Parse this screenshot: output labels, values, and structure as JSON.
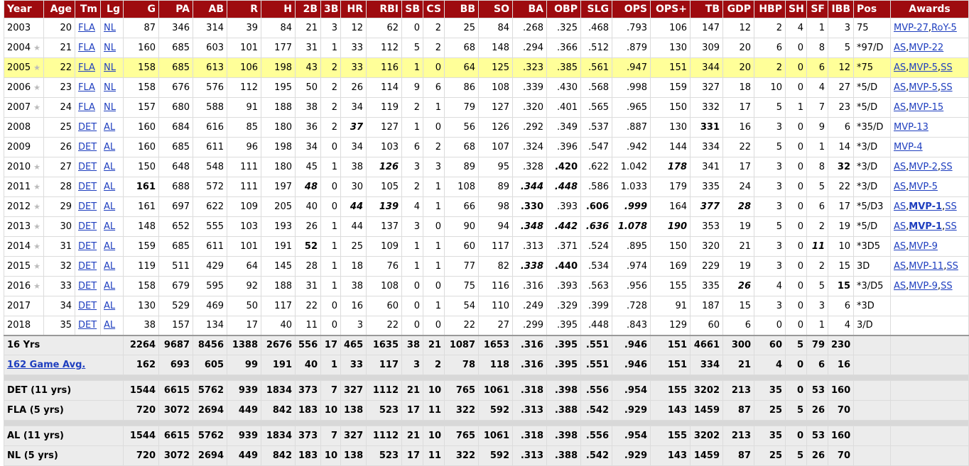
{
  "headers": [
    {
      "label": "Year",
      "align": "left"
    },
    {
      "label": "Age"
    },
    {
      "label": "Tm"
    },
    {
      "label": "Lg"
    },
    {
      "label": "G"
    },
    {
      "label": "PA"
    },
    {
      "label": "AB"
    },
    {
      "label": "R"
    },
    {
      "label": "H"
    },
    {
      "label": "2B"
    },
    {
      "label": "3B"
    },
    {
      "label": "HR"
    },
    {
      "label": "RBI"
    },
    {
      "label": "SB"
    },
    {
      "label": "CS"
    },
    {
      "label": "BB"
    },
    {
      "label": "SO"
    },
    {
      "label": "BA"
    },
    {
      "label": "OBP"
    },
    {
      "label": "SLG"
    },
    {
      "label": "OPS"
    },
    {
      "label": "OPS+"
    },
    {
      "label": "TB"
    },
    {
      "label": "GDP"
    },
    {
      "label": "HBP"
    },
    {
      "label": "SH"
    },
    {
      "label": "SF"
    },
    {
      "label": "IBB"
    },
    {
      "label": "Pos",
      "align": "left"
    },
    {
      "label": "Awards",
      "align": "center"
    }
  ],
  "seasons": [
    {
      "year": "2003",
      "star": false,
      "age": "20",
      "tm": "FLA",
      "lg": "NL",
      "g": "87",
      "pa": "346",
      "ab": "314",
      "r": "39",
      "h": "84",
      "b2": "21",
      "b3": "3",
      "hr": "12",
      "rbi": "62",
      "sb": "0",
      "cs": "2",
      "bb": "25",
      "so": "84",
      "ba": ".268",
      "obp": ".325",
      "slg": ".468",
      "ops": ".793",
      "opsp": "106",
      "tb": "147",
      "gdp": "12",
      "hbp": "2",
      "sh": "4",
      "sf": "1",
      "ibb": "3",
      "pos": "75",
      "awards": [
        {
          "t": "MVP-27",
          "link": true
        },
        {
          "t": ","
        },
        {
          "t": "RoY-5",
          "link": true
        }
      ],
      "fmt": {}
    },
    {
      "year": "2004",
      "star": true,
      "age": "21",
      "tm": "FLA",
      "lg": "NL",
      "g": "160",
      "pa": "685",
      "ab": "603",
      "r": "101",
      "h": "177",
      "b2": "31",
      "b3": "1",
      "hr": "33",
      "rbi": "112",
      "sb": "5",
      "cs": "2",
      "bb": "68",
      "so": "148",
      "ba": ".294",
      "obp": ".366",
      "slg": ".512",
      "ops": ".879",
      "opsp": "130",
      "tb": "309",
      "gdp": "20",
      "hbp": "6",
      "sh": "0",
      "sf": "8",
      "ibb": "5",
      "pos": "*97/D",
      "awards": [
        {
          "t": "AS",
          "link": true
        },
        {
          "t": ","
        },
        {
          "t": "MVP-22",
          "link": true
        }
      ],
      "fmt": {}
    },
    {
      "year": "2005",
      "star": true,
      "hl": true,
      "age": "22",
      "tm": "FLA",
      "lg": "NL",
      "g": "158",
      "pa": "685",
      "ab": "613",
      "r": "106",
      "h": "198",
      "b2": "43",
      "b3": "2",
      "hr": "33",
      "rbi": "116",
      "sb": "1",
      "cs": "0",
      "bb": "64",
      "so": "125",
      "ba": ".323",
      "obp": ".385",
      "slg": ".561",
      "ops": ".947",
      "opsp": "151",
      "tb": "344",
      "gdp": "20",
      "hbp": "2",
      "sh": "0",
      "sf": "6",
      "ibb": "12",
      "pos": "*75",
      "awards": [
        {
          "t": "AS",
          "link": true
        },
        {
          "t": ","
        },
        {
          "t": "MVP-5",
          "link": true
        },
        {
          "t": ","
        },
        {
          "t": "SS",
          "link": true
        }
      ],
      "fmt": {}
    },
    {
      "year": "2006",
      "star": true,
      "age": "23",
      "tm": "FLA",
      "lg": "NL",
      "g": "158",
      "pa": "676",
      "ab": "576",
      "r": "112",
      "h": "195",
      "b2": "50",
      "b3": "2",
      "hr": "26",
      "rbi": "114",
      "sb": "9",
      "cs": "6",
      "bb": "86",
      "so": "108",
      "ba": ".339",
      "obp": ".430",
      "slg": ".568",
      "ops": ".998",
      "opsp": "159",
      "tb": "327",
      "gdp": "18",
      "hbp": "10",
      "sh": "0",
      "sf": "4",
      "ibb": "27",
      "pos": "*5/D",
      "awards": [
        {
          "t": "AS",
          "link": true
        },
        {
          "t": ","
        },
        {
          "t": "MVP-5",
          "link": true
        },
        {
          "t": ","
        },
        {
          "t": "SS",
          "link": true
        }
      ],
      "fmt": {}
    },
    {
      "year": "2007",
      "star": true,
      "age": "24",
      "tm": "FLA",
      "lg": "NL",
      "g": "157",
      "pa": "680",
      "ab": "588",
      "r": "91",
      "h": "188",
      "b2": "38",
      "b3": "2",
      "hr": "34",
      "rbi": "119",
      "sb": "2",
      "cs": "1",
      "bb": "79",
      "so": "127",
      "ba": ".320",
      "obp": ".401",
      "slg": ".565",
      "ops": ".965",
      "opsp": "150",
      "tb": "332",
      "gdp": "17",
      "hbp": "5",
      "sh": "1",
      "sf": "7",
      "ibb": "23",
      "pos": "*5/D",
      "awards": [
        {
          "t": "AS",
          "link": true
        },
        {
          "t": ","
        },
        {
          "t": "MVP-15",
          "link": true
        }
      ],
      "fmt": {}
    },
    {
      "year": "2008",
      "star": false,
      "age": "25",
      "tm": "DET",
      "lg": "AL",
      "g": "160",
      "pa": "684",
      "ab": "616",
      "r": "85",
      "h": "180",
      "b2": "36",
      "b3": "2",
      "hr": "37",
      "rbi": "127",
      "sb": "1",
      "cs": "0",
      "bb": "56",
      "so": "126",
      "ba": ".292",
      "obp": ".349",
      "slg": ".537",
      "ops": ".887",
      "opsp": "130",
      "tb": "331",
      "gdp": "16",
      "hbp": "3",
      "sh": "0",
      "sf": "9",
      "ibb": "6",
      "pos": "*35/D",
      "awards": [
        {
          "t": "MVP-13",
          "link": true
        }
      ],
      "fmt": {
        "hr": "bi",
        "tb": "b"
      }
    },
    {
      "year": "2009",
      "star": false,
      "age": "26",
      "tm": "DET",
      "lg": "AL",
      "g": "160",
      "pa": "685",
      "ab": "611",
      "r": "96",
      "h": "198",
      "b2": "34",
      "b3": "0",
      "hr": "34",
      "rbi": "103",
      "sb": "6",
      "cs": "2",
      "bb": "68",
      "so": "107",
      "ba": ".324",
      "obp": ".396",
      "slg": ".547",
      "ops": ".942",
      "opsp": "144",
      "tb": "334",
      "gdp": "22",
      "hbp": "5",
      "sh": "0",
      "sf": "1",
      "ibb": "14",
      "pos": "*3/D",
      "awards": [
        {
          "t": "MVP-4",
          "link": true
        }
      ],
      "fmt": {}
    },
    {
      "year": "2010",
      "star": true,
      "age": "27",
      "tm": "DET",
      "lg": "AL",
      "g": "150",
      "pa": "648",
      "ab": "548",
      "r": "111",
      "h": "180",
      "b2": "45",
      "b3": "1",
      "hr": "38",
      "rbi": "126",
      "sb": "3",
      "cs": "3",
      "bb": "89",
      "so": "95",
      "ba": ".328",
      "obp": ".420",
      "slg": ".622",
      "ops": "1.042",
      "opsp": "178",
      "tb": "341",
      "gdp": "17",
      "hbp": "3",
      "sh": "0",
      "sf": "8",
      "ibb": "32",
      "pos": "*3/D",
      "awards": [
        {
          "t": "AS",
          "link": true
        },
        {
          "t": ","
        },
        {
          "t": "MVP-2",
          "link": true
        },
        {
          "t": ","
        },
        {
          "t": "SS",
          "link": true
        }
      ],
      "fmt": {
        "rbi": "bi",
        "obp": "b",
        "opsp": "bi",
        "ibb": "b"
      }
    },
    {
      "year": "2011",
      "star": true,
      "age": "28",
      "tm": "DET",
      "lg": "AL",
      "g": "161",
      "pa": "688",
      "ab": "572",
      "r": "111",
      "h": "197",
      "b2": "48",
      "b3": "0",
      "hr": "30",
      "rbi": "105",
      "sb": "2",
      "cs": "1",
      "bb": "108",
      "so": "89",
      "ba": ".344",
      "obp": ".448",
      "slg": ".586",
      "ops": "1.033",
      "opsp": "179",
      "tb": "335",
      "gdp": "24",
      "hbp": "3",
      "sh": "0",
      "sf": "5",
      "ibb": "22",
      "pos": "*3/D",
      "awards": [
        {
          "t": "AS",
          "link": true
        },
        {
          "t": ","
        },
        {
          "t": "MVP-5",
          "link": true
        }
      ],
      "fmt": {
        "g": "b",
        "b2": "bi",
        "ba": "bi",
        "obp": "bi"
      }
    },
    {
      "year": "2012",
      "star": true,
      "age": "29",
      "tm": "DET",
      "lg": "AL",
      "g": "161",
      "pa": "697",
      "ab": "622",
      "r": "109",
      "h": "205",
      "b2": "40",
      "b3": "0",
      "hr": "44",
      "rbi": "139",
      "sb": "4",
      "cs": "1",
      "bb": "66",
      "so": "98",
      "ba": ".330",
      "obp": ".393",
      "slg": ".606",
      "ops": ".999",
      "opsp": "164",
      "tb": "377",
      "gdp": "28",
      "hbp": "3",
      "sh": "0",
      "sf": "6",
      "ibb": "17",
      "pos": "*5/D3",
      "awards": [
        {
          "t": "AS",
          "link": true
        },
        {
          "t": ","
        },
        {
          "t": "MVP-1",
          "link": true,
          "bold": true
        },
        {
          "t": ","
        },
        {
          "t": "SS",
          "link": true
        }
      ],
      "fmt": {
        "hr": "bi",
        "rbi": "bi",
        "ba": "b",
        "slg": "b",
        "ops": "bi",
        "tb": "bi",
        "gdp": "bi"
      }
    },
    {
      "year": "2013",
      "star": true,
      "age": "30",
      "tm": "DET",
      "lg": "AL",
      "g": "148",
      "pa": "652",
      "ab": "555",
      "r": "103",
      "h": "193",
      "b2": "26",
      "b3": "1",
      "hr": "44",
      "rbi": "137",
      "sb": "3",
      "cs": "0",
      "bb": "90",
      "so": "94",
      "ba": ".348",
      "obp": ".442",
      "slg": ".636",
      "ops": "1.078",
      "opsp": "190",
      "tb": "353",
      "gdp": "19",
      "hbp": "5",
      "sh": "0",
      "sf": "2",
      "ibb": "19",
      "pos": "*5/D",
      "awards": [
        {
          "t": "AS",
          "link": true
        },
        {
          "t": ","
        },
        {
          "t": "MVP-1",
          "link": true,
          "bold": true
        },
        {
          "t": ","
        },
        {
          "t": "SS",
          "link": true
        }
      ],
      "fmt": {
        "ba": "bi",
        "obp": "bi",
        "slg": "bi",
        "ops": "bi",
        "opsp": "bi"
      }
    },
    {
      "year": "2014",
      "star": true,
      "age": "31",
      "tm": "DET",
      "lg": "AL",
      "g": "159",
      "pa": "685",
      "ab": "611",
      "r": "101",
      "h": "191",
      "b2": "52",
      "b3": "1",
      "hr": "25",
      "rbi": "109",
      "sb": "1",
      "cs": "1",
      "bb": "60",
      "so": "117",
      "ba": ".313",
      "obp": ".371",
      "slg": ".524",
      "ops": ".895",
      "opsp": "150",
      "tb": "320",
      "gdp": "21",
      "hbp": "3",
      "sh": "0",
      "sf": "11",
      "ibb": "10",
      "pos": "*3D5",
      "awards": [
        {
          "t": "AS",
          "link": true
        },
        {
          "t": ","
        },
        {
          "t": "MVP-9",
          "link": true
        }
      ],
      "fmt": {
        "b2": "b",
        "sf": "bi"
      }
    },
    {
      "year": "2015",
      "star": true,
      "age": "32",
      "tm": "DET",
      "lg": "AL",
      "g": "119",
      "pa": "511",
      "ab": "429",
      "r": "64",
      "h": "145",
      "b2": "28",
      "b3": "1",
      "hr": "18",
      "rbi": "76",
      "sb": "1",
      "cs": "1",
      "bb": "77",
      "so": "82",
      "ba": ".338",
      "obp": ".440",
      "slg": ".534",
      "ops": ".974",
      "opsp": "169",
      "tb": "229",
      "gdp": "19",
      "hbp": "3",
      "sh": "0",
      "sf": "2",
      "ibb": "15",
      "pos": "3D",
      "awards": [
        {
          "t": "AS",
          "link": true
        },
        {
          "t": ","
        },
        {
          "t": "MVP-11",
          "link": true
        },
        {
          "t": ","
        },
        {
          "t": "SS",
          "link": true
        }
      ],
      "fmt": {
        "ba": "bi",
        "obp": "b"
      }
    },
    {
      "year": "2016",
      "star": true,
      "age": "33",
      "tm": "DET",
      "lg": "AL",
      "g": "158",
      "pa": "679",
      "ab": "595",
      "r": "92",
      "h": "188",
      "b2": "31",
      "b3": "1",
      "hr": "38",
      "rbi": "108",
      "sb": "0",
      "cs": "0",
      "bb": "75",
      "so": "116",
      "ba": ".316",
      "obp": ".393",
      "slg": ".563",
      "ops": ".956",
      "opsp": "155",
      "tb": "335",
      "gdp": "26",
      "hbp": "4",
      "sh": "0",
      "sf": "5",
      "ibb": "15",
      "pos": "*3/D5",
      "awards": [
        {
          "t": "AS",
          "link": true
        },
        {
          "t": ","
        },
        {
          "t": "MVP-9",
          "link": true
        },
        {
          "t": ","
        },
        {
          "t": "SS",
          "link": true
        }
      ],
      "fmt": {
        "gdp": "bi",
        "ibb": "b"
      }
    },
    {
      "year": "2017",
      "star": false,
      "age": "34",
      "tm": "DET",
      "lg": "AL",
      "g": "130",
      "pa": "529",
      "ab": "469",
      "r": "50",
      "h": "117",
      "b2": "22",
      "b3": "0",
      "hr": "16",
      "rbi": "60",
      "sb": "0",
      "cs": "1",
      "bb": "54",
      "so": "110",
      "ba": ".249",
      "obp": ".329",
      "slg": ".399",
      "ops": ".728",
      "opsp": "91",
      "tb": "187",
      "gdp": "15",
      "hbp": "3",
      "sh": "0",
      "sf": "3",
      "ibb": "6",
      "pos": "*3D",
      "awards": [],
      "fmt": {}
    },
    {
      "year": "2018",
      "star": false,
      "age": "35",
      "tm": "DET",
      "lg": "AL",
      "g": "38",
      "pa": "157",
      "ab": "134",
      "r": "17",
      "h": "40",
      "b2": "11",
      "b3": "0",
      "hr": "3",
      "rbi": "22",
      "sb": "0",
      "cs": "0",
      "bb": "22",
      "so": "27",
      "ba": ".299",
      "obp": ".395",
      "slg": ".448",
      "ops": ".843",
      "opsp": "129",
      "tb": "60",
      "gdp": "6",
      "hbp": "0",
      "sh": "0",
      "sf": "1",
      "ibb": "4",
      "pos": "3/D",
      "awards": [],
      "fmt": {}
    }
  ],
  "summary": [
    {
      "label": "16 Yrs",
      "link": false,
      "g": "2264",
      "pa": "9687",
      "ab": "8456",
      "r": "1388",
      "h": "2676",
      "b2": "556",
      "b3": "17",
      "hr": "465",
      "rbi": "1635",
      "sb": "38",
      "cs": "21",
      "bb": "1087",
      "so": "1653",
      "ba": ".316",
      "obp": ".395",
      "slg": ".551",
      "ops": ".946",
      "opsp": "151",
      "tb": "4661",
      "gdp": "300",
      "hbp": "60",
      "sh": "5",
      "sf": "79",
      "ibb": "230"
    },
    {
      "label": "162 Game Avg.",
      "link": true,
      "g": "162",
      "pa": "693",
      "ab": "605",
      "r": "99",
      "h": "191",
      "b2": "40",
      "b3": "1",
      "hr": "33",
      "rbi": "117",
      "sb": "3",
      "cs": "2",
      "bb": "78",
      "so": "118",
      "ba": ".316",
      "obp": ".395",
      "slg": ".551",
      "ops": ".946",
      "opsp": "151",
      "tb": "334",
      "gdp": "21",
      "hbp": "4",
      "sh": "0",
      "sf": "6",
      "ibb": "16"
    },
    {
      "gap": true
    },
    {
      "label": "DET (11 yrs)",
      "link": false,
      "g": "1544",
      "pa": "6615",
      "ab": "5762",
      "r": "939",
      "h": "1834",
      "b2": "373",
      "b3": "7",
      "hr": "327",
      "rbi": "1112",
      "sb": "21",
      "cs": "10",
      "bb": "765",
      "so": "1061",
      "ba": ".318",
      "obp": ".398",
      "slg": ".556",
      "ops": ".954",
      "opsp": "155",
      "tb": "3202",
      "gdp": "213",
      "hbp": "35",
      "sh": "0",
      "sf": "53",
      "ibb": "160"
    },
    {
      "label": "FLA (5 yrs)",
      "link": false,
      "g": "720",
      "pa": "3072",
      "ab": "2694",
      "r": "449",
      "h": "842",
      "b2": "183",
      "b3": "10",
      "hr": "138",
      "rbi": "523",
      "sb": "17",
      "cs": "11",
      "bb": "322",
      "so": "592",
      "ba": ".313",
      "obp": ".388",
      "slg": ".542",
      "ops": ".929",
      "opsp": "143",
      "tb": "1459",
      "gdp": "87",
      "hbp": "25",
      "sh": "5",
      "sf": "26",
      "ibb": "70"
    },
    {
      "gap": true
    },
    {
      "label": "AL (11 yrs)",
      "link": false,
      "g": "1544",
      "pa": "6615",
      "ab": "5762",
      "r": "939",
      "h": "1834",
      "b2": "373",
      "b3": "7",
      "hr": "327",
      "rbi": "1112",
      "sb": "21",
      "cs": "10",
      "bb": "765",
      "so": "1061",
      "ba": ".318",
      "obp": ".398",
      "slg": ".556",
      "ops": ".954",
      "opsp": "155",
      "tb": "3202",
      "gdp": "213",
      "hbp": "35",
      "sh": "0",
      "sf": "53",
      "ibb": "160"
    },
    {
      "label": "NL (5 yrs)",
      "link": false,
      "g": "720",
      "pa": "3072",
      "ab": "2694",
      "r": "449",
      "h": "842",
      "b2": "183",
      "b3": "10",
      "hr": "138",
      "rbi": "523",
      "sb": "17",
      "cs": "11",
      "bb": "322",
      "so": "592",
      "ba": ".313",
      "obp": ".388",
      "slg": ".542",
      "ops": ".929",
      "opsp": "143",
      "tb": "1459",
      "gdp": "87",
      "hbp": "25",
      "sh": "5",
      "sf": "26",
      "ibb": "70"
    }
  ],
  "colors": {
    "header_bg": "#9e0b0f",
    "highlight_row": "#ffff99",
    "link": "#1f3fbf",
    "summary_bg": "#ececec"
  },
  "icons": {
    "allstar": "star-icon"
  }
}
